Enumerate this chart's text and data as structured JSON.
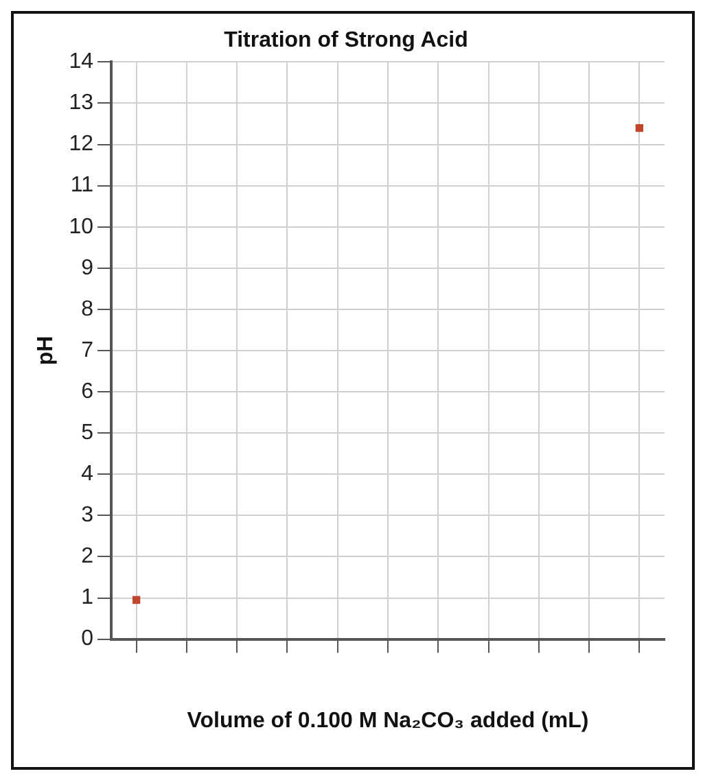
{
  "chart_data": {
    "type": "scatter",
    "title": "Titration of Strong Acid",
    "xlabel": "Volume of 0.100 M Na₂CO₃ added (mL)",
    "ylabel": "pH",
    "categories": [
      null,
      null,
      null,
      null,
      null,
      null,
      null,
      null,
      null,
      null,
      null
    ],
    "values": [
      0.95,
      null,
      null,
      null,
      null,
      null,
      null,
      null,
      null,
      null,
      12.4
    ],
    "color": "#c0452b",
    "marker": "square",
    "ylim": [
      0,
      14
    ],
    "yticks": [
      0,
      1,
      2,
      3,
      4,
      5,
      6,
      7,
      8,
      9,
      10,
      11,
      12,
      13,
      14
    ],
    "grid": true,
    "tick_labels": "y"
  }
}
